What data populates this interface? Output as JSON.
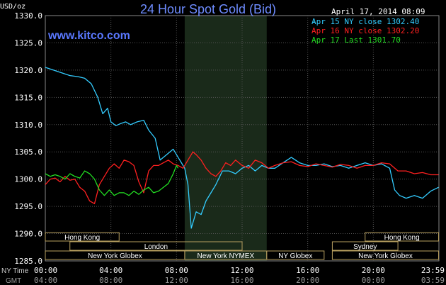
{
  "header": {
    "title": "24 Hour Spot Gold (Bid)",
    "timestamp": "April 17, 2014 08:09",
    "website": "www.kitco.com",
    "units": "USD/oz"
  },
  "legend": [
    {
      "label": "Apr 15 NY close 1302.40",
      "color": "#33ccff"
    },
    {
      "label": "Apr 16 NY close 1302.20",
      "color": "#ff2020"
    },
    {
      "label": "Apr 17 Last 1301.70",
      "color": "#22dd22"
    }
  ],
  "sessions": {
    "hong_kong_1": "Hong Kong",
    "london": "London",
    "new_york_globex_1": "New York Globex",
    "new_york_nymex": "New York NYMEX",
    "ny_globex": "NY Globex",
    "hong_kong_2": "Hong Kong",
    "sydney": "Sydney",
    "new_york_globex_2": "New York Globex"
  },
  "axis_rows": {
    "ny_label": "NY Time",
    "gmt_label": "GMT"
  },
  "chart_data": {
    "type": "line",
    "ylim": [
      1285,
      1330
    ],
    "xlim": [
      0,
      24
    ],
    "y_ticks": [
      "1285.0",
      "1290.0",
      "1295.0",
      "1300.0",
      "1305.0",
      "1310.0",
      "1315.0",
      "1320.0",
      "1325.0",
      "1330.0"
    ],
    "x_ticks_ny": [
      "00:00",
      "04:00",
      "08:00",
      "12:00",
      "16:00",
      "20:00",
      "23:59"
    ],
    "x_ticks_gmt": [
      "04:00",
      "08:00",
      "12:00",
      "16:00",
      "20:00",
      "00:00",
      "03:59"
    ],
    "grid": true,
    "shaded_hours": [
      8.5,
      13.5
    ],
    "series": [
      {
        "name": "Apr 15 NY close 1302.40",
        "color": "#33ccff",
        "x": [
          0,
          0.5,
          1,
          1.5,
          2,
          2.4,
          2.8,
          3.2,
          3.5,
          3.8,
          4,
          4.3,
          4.6,
          4.9,
          5.2,
          5.6,
          6,
          6.3,
          6.7,
          7,
          7.4,
          7.8,
          8.1,
          8.3,
          8.5,
          8.7,
          8.9,
          9.2,
          9.5,
          9.8,
          10.1,
          10.4,
          10.8,
          11.2,
          11.6,
          12,
          12.4,
          12.8,
          13.2,
          13.6,
          14,
          14.5,
          15,
          15.5,
          16,
          16.5,
          17,
          17.5,
          18,
          18.5,
          19,
          19.5,
          20,
          20.5,
          21,
          21.3,
          21.6,
          22,
          22.5,
          23,
          23.5,
          23.98
        ],
        "y": [
          1320.5,
          1320,
          1319.5,
          1319,
          1318.8,
          1318.5,
          1317.5,
          1315,
          1312,
          1313,
          1310.5,
          1309.8,
          1310.2,
          1310.5,
          1310,
          1310.5,
          1310.8,
          1309,
          1307.5,
          1303.5,
          1304.5,
          1305.5,
          1304,
          1303,
          1302,
          1299,
          1291,
          1294,
          1293.5,
          1296,
          1297.5,
          1299,
          1301.5,
          1301.5,
          1301,
          1302,
          1302.5,
          1301.5,
          1302.5,
          1302,
          1302,
          1303,
          1304,
          1303,
          1302.5,
          1302.5,
          1302.8,
          1302.3,
          1302.5,
          1302,
          1302.5,
          1303,
          1302.5,
          1302.8,
          1302,
          1298,
          1297,
          1296.5,
          1297,
          1296.5,
          1297.8,
          1298.5
        ]
      },
      {
        "name": "Apr 16 NY close 1302.20",
        "color": "#ff2020",
        "x": [
          0,
          0.3,
          0.6,
          0.9,
          1.2,
          1.5,
          1.8,
          2.1,
          2.4,
          2.7,
          3,
          3.3,
          3.6,
          3.9,
          4.2,
          4.5,
          4.8,
          5.1,
          5.4,
          5.7,
          6,
          6.3,
          6.6,
          6.9,
          7.2,
          7.5,
          7.8,
          8.1,
          8.4,
          8.7,
          9,
          9.2,
          9.5,
          9.8,
          10.1,
          10.4,
          10.7,
          11,
          11.3,
          11.6,
          12,
          12.4,
          12.8,
          13.2,
          13.6,
          14,
          14.5,
          15,
          15.5,
          16,
          16.5,
          17,
          17.5,
          18,
          18.5,
          19,
          19.5,
          20,
          20.5,
          21,
          21.5,
          22,
          22.5,
          23,
          23.5,
          23.98
        ],
        "y": [
          1299,
          1300,
          1300.2,
          1299.5,
          1300.5,
          1299.8,
          1300,
          1298.5,
          1297.8,
          1296,
          1295.5,
          1299,
          1300.5,
          1302,
          1302.8,
          1302,
          1303.5,
          1303.2,
          1302.5,
          1299.5,
          1297.5,
          1301.5,
          1302.5,
          1302.5,
          1303,
          1303.5,
          1302.8,
          1302.5,
          1302,
          1303.5,
          1305,
          1304.5,
          1303.5,
          1302,
          1301,
          1300.5,
          1301.5,
          1303,
          1302.5,
          1303.5,
          1302.5,
          1302,
          1303.5,
          1303,
          1302,
          1302.5,
          1303,
          1303.2,
          1302.5,
          1302.3,
          1302.8,
          1302.5,
          1302.2,
          1302.7,
          1302.5,
          1302,
          1302.5,
          1302.5,
          1303,
          1302.8,
          1301.5,
          1301.5,
          1301,
          1301.2,
          1300.8,
          1300.8
        ]
      },
      {
        "name": "Apr 17 Last 1301.70",
        "color": "#22dd22",
        "x": [
          0,
          0.3,
          0.6,
          0.9,
          1.2,
          1.5,
          1.8,
          2.1,
          2.4,
          2.7,
          3,
          3.3,
          3.6,
          3.9,
          4.2,
          4.5,
          4.8,
          5.1,
          5.4,
          5.7,
          6,
          6.3,
          6.6,
          6.9,
          7.2,
          7.5,
          7.8,
          8,
          8.1
        ],
        "y": [
          1301,
          1300.5,
          1300.8,
          1300.5,
          1300,
          1301,
          1300.5,
          1300.2,
          1301.5,
          1301,
          1300,
          1298,
          1297,
          1298,
          1297,
          1297.5,
          1297.5,
          1297,
          1297.8,
          1297.2,
          1298,
          1298.5,
          1297.5,
          1297.8,
          1298.5,
          1299.2,
          1301,
          1302.5,
          1302
        ]
      }
    ]
  }
}
